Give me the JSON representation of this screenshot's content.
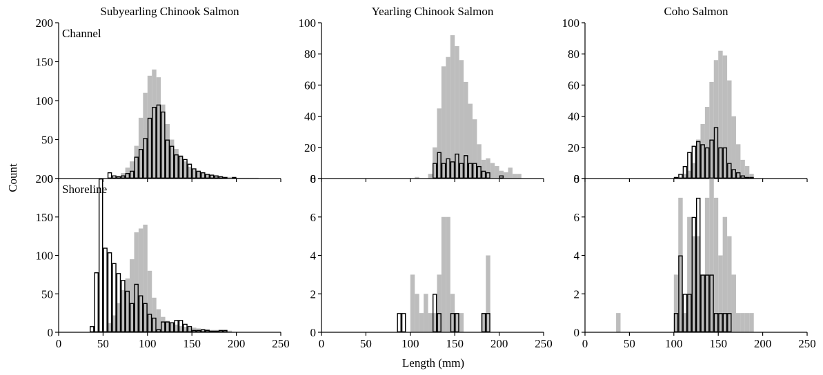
{
  "colors": {
    "filled_bars": "#bdbdbd",
    "open_bars_stroke": "#000000",
    "open_bars_fill": "#ffffff"
  },
  "xlabel": "Length (mm)",
  "ylabel": "Count",
  "row_labels": [
    "Channel",
    "Shoreline"
  ],
  "chart_data": [
    {
      "type": "bar",
      "title": "Subyearling Chinook Salmon",
      "row_label": "Channel",
      "xlim": [
        0,
        250
      ],
      "ylim": [
        0,
        200
      ],
      "xticks": [
        0,
        50,
        100,
        150,
        200,
        250
      ],
      "yticks": [
        0,
        50,
        100,
        150,
        200
      ],
      "bin_width": 5,
      "series": [
        {
          "style": "filled",
          "x": [
            65,
            70,
            75,
            80,
            85,
            90,
            95,
            100,
            105,
            110,
            115,
            120,
            125,
            130,
            135,
            140,
            145,
            150,
            155,
            160,
            165,
            170,
            175,
            180,
            185,
            190,
            195,
            200,
            205,
            210,
            215,
            220
          ],
          "values": [
            3,
            7,
            14,
            22,
            42,
            78,
            110,
            132,
            140,
            130,
            95,
            70,
            50,
            38,
            30,
            22,
            15,
            11,
            9,
            7,
            5,
            4,
            3,
            3,
            2,
            2,
            1,
            1,
            1,
            1,
            1,
            1
          ]
        },
        {
          "style": "open",
          "x": [
            55,
            60,
            65,
            70,
            75,
            80,
            85,
            90,
            95,
            100,
            105,
            110,
            115,
            120,
            125,
            130,
            135,
            140,
            145,
            150,
            155,
            160,
            165,
            170,
            175,
            180,
            185,
            190,
            195,
            200,
            205,
            210,
            215
          ],
          "values": [
            8,
            4,
            3,
            4,
            7,
            10,
            28,
            38,
            52,
            78,
            92,
            95,
            86,
            50,
            42,
            31,
            29,
            25,
            19,
            13,
            10,
            8,
            6,
            5,
            4,
            3,
            2,
            0,
            2,
            1,
            1,
            1,
            1
          ]
        }
      ]
    },
    {
      "type": "bar",
      "title": "Yearling Chinook Salmon",
      "row_label": "Channel",
      "xlim": [
        0,
        250
      ],
      "ylim": [
        0,
        100
      ],
      "xticks": [
        0,
        50,
        100,
        150,
        200,
        250
      ],
      "yticks": [
        0,
        20,
        40,
        60,
        80,
        100
      ],
      "bin_width": 5,
      "series": [
        {
          "style": "filled",
          "x": [
            105,
            120,
            125,
            130,
            135,
            140,
            145,
            150,
            155,
            160,
            165,
            170,
            175,
            180,
            185,
            190,
            195,
            200,
            205,
            210,
            215,
            220
          ],
          "values": [
            1,
            3,
            20,
            45,
            72,
            78,
            92,
            85,
            76,
            62,
            48,
            38,
            22,
            12,
            13,
            10,
            8,
            5,
            4,
            7,
            3,
            3
          ]
        },
        {
          "style": "open",
          "x": [
            125,
            130,
            135,
            140,
            145,
            150,
            155,
            160,
            165,
            170,
            175,
            180,
            185,
            190,
            195,
            200
          ],
          "values": [
            10,
            17,
            10,
            13,
            11,
            16,
            10,
            15,
            10,
            10,
            8,
            5,
            4,
            0,
            0,
            2
          ]
        }
      ]
    },
    {
      "type": "bar",
      "title": "Coho Salmon",
      "row_label": "Channel",
      "xlim": [
        0,
        250
      ],
      "ylim": [
        0,
        100
      ],
      "xticks": [
        0,
        50,
        100,
        150,
        200,
        250
      ],
      "yticks": [
        0,
        20,
        40,
        60,
        80,
        100
      ],
      "bin_width": 5,
      "series": [
        {
          "style": "filled",
          "x": [
            110,
            115,
            120,
            125,
            130,
            135,
            140,
            145,
            150,
            155,
            160,
            165,
            170,
            175,
            180,
            185
          ],
          "values": [
            3,
            5,
            10,
            25,
            35,
            46,
            62,
            76,
            82,
            79,
            63,
            40,
            22,
            12,
            8,
            3
          ]
        },
        {
          "style": "open",
          "x": [
            100,
            105,
            110,
            115,
            120,
            125,
            130,
            135,
            140,
            145,
            150,
            155,
            160,
            165,
            170,
            175,
            180,
            185
          ],
          "values": [
            1,
            3,
            8,
            17,
            21,
            24,
            22,
            20,
            25,
            33,
            20,
            20,
            10,
            6,
            4,
            2,
            1,
            1
          ]
        }
      ]
    },
    {
      "type": "bar",
      "title": "",
      "row_label": "Shoreline",
      "xlim": [
        0,
        250
      ],
      "ylim": [
        0,
        200
      ],
      "xticks": [
        0,
        50,
        100,
        150,
        200,
        250
      ],
      "yticks": [
        0,
        50,
        100,
        150,
        200
      ],
      "bin_width": 5,
      "series": [
        {
          "style": "filled",
          "x": [
            55,
            60,
            65,
            70,
            75,
            80,
            85,
            90,
            95,
            100,
            105,
            110,
            115,
            120,
            125,
            130,
            135,
            140,
            145,
            150,
            155,
            160,
            165,
            170,
            175,
            180,
            185,
            190
          ],
          "values": [
            12,
            22,
            38,
            55,
            70,
            95,
            130,
            135,
            140,
            80,
            45,
            30,
            20,
            15,
            12,
            10,
            8,
            7,
            6,
            6,
            5,
            4,
            4,
            3,
            3,
            2,
            2,
            2
          ]
        },
        {
          "style": "open",
          "x": [
            35,
            40,
            45,
            50,
            55,
            60,
            65,
            70,
            75,
            80,
            85,
            90,
            95,
            100,
            105,
            110,
            115,
            120,
            125,
            130,
            135,
            140,
            145,
            150,
            155,
            160,
            165,
            170,
            175,
            180,
            185,
            190
          ],
          "values": [
            8,
            78,
            203,
            110,
            104,
            90,
            77,
            68,
            54,
            38,
            63,
            48,
            38,
            24,
            19,
            4,
            14,
            14,
            13,
            16,
            16,
            11,
            8,
            3,
            3,
            4,
            3,
            2,
            2,
            3,
            3,
            1
          ]
        }
      ]
    },
    {
      "type": "bar",
      "title": "",
      "row_label": "Shoreline",
      "xlim": [
        0,
        250
      ],
      "ylim": [
        0,
        8
      ],
      "xticks": [
        0,
        50,
        100,
        150,
        200,
        250
      ],
      "yticks": [
        0,
        2,
        4,
        6,
        8
      ],
      "bin_width": 5,
      "series": [
        {
          "style": "filled",
          "x": [
            100,
            105,
            110,
            115,
            120,
            125,
            130,
            135,
            140,
            145,
            150,
            155,
            180,
            185
          ],
          "values": [
            3,
            2,
            1,
            2,
            1,
            1,
            3,
            6,
            6,
            2,
            1,
            1,
            1,
            4
          ]
        },
        {
          "style": "open",
          "x": [
            85,
            90,
            125,
            130,
            145,
            150,
            180,
            185
          ],
          "values": [
            1,
            1,
            2,
            1,
            1,
            1,
            1,
            1
          ]
        }
      ]
    },
    {
      "type": "bar",
      "title": "",
      "row_label": "Shoreline",
      "xlim": [
        0,
        250
      ],
      "ylim": [
        0,
        8
      ],
      "xticks": [
        0,
        50,
        100,
        150,
        200,
        250
      ],
      "yticks": [
        0,
        2,
        4,
        6,
        8
      ],
      "bin_width": 5,
      "series": [
        {
          "style": "filled",
          "x": [
            35,
            40,
            100,
            105,
            110,
            115,
            120,
            125,
            130,
            135,
            140,
            145,
            150,
            155,
            160,
            165,
            170,
            175,
            180,
            185
          ],
          "values": [
            1,
            0,
            3,
            7,
            1,
            6,
            5,
            5,
            3,
            7,
            8,
            7,
            4,
            6,
            5,
            3,
            1,
            1,
            1,
            1
          ]
        },
        {
          "style": "open",
          "x": [
            100,
            105,
            110,
            115,
            120,
            125,
            130,
            135,
            140,
            145,
            150,
            155,
            160
          ],
          "values": [
            1,
            4,
            2,
            2,
            6,
            7,
            3,
            3,
            3,
            1,
            1,
            1,
            1
          ]
        }
      ]
    }
  ]
}
